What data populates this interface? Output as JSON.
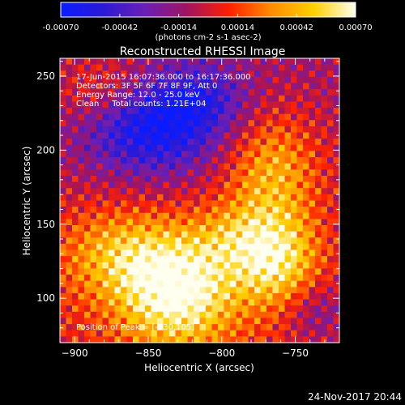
{
  "chart_data": {
    "type": "heatmap",
    "title": "Reconstructed RHESSI Image",
    "xlabel": "Heliocentric X (arcsec)",
    "ylabel": "Heliocentric Y (arcsec)",
    "xlim": [
      -910,
      -720
    ],
    "ylim": [
      70,
      262
    ],
    "x_ticks": [
      -900,
      -850,
      -800,
      -750
    ],
    "y_ticks": [
      100,
      150,
      200,
      250
    ],
    "colorbar": {
      "range": [
        -0.0007,
        0.0007
      ],
      "ticks": [
        "-0.00070",
        "-0.00042",
        "-0.00014",
        "0.00014",
        "0.00042",
        "0.00070"
      ],
      "unit_label": "(photons cm-2 s-1 asec-2)",
      "colors": [
        "#0a1cff",
        "#2a1ad6",
        "#6a1fb6",
        "#a01460",
        "#ff2000",
        "#ff8c00",
        "#ffd000",
        "#fffff0"
      ]
    },
    "annotations": [
      "17-Jun-2015 16:07:36.000 to 16:17:36.000",
      "Detectors: 3F 5F 6F 7F 8F 9F, Att 0",
      "Energy Range: 12.0 - 25.0 keV",
      "Clean     Total counts: 1.21E+04"
    ],
    "peak_label": "Position of Peak = [-830,105]",
    "peak": [
      -830,
      105
    ],
    "footer_date": "24-Nov-2017 20:44",
    "features": [
      {
        "x": -830,
        "y": 105,
        "amp": 0.00075,
        "sx": 28,
        "sy": 26
      },
      {
        "x": -870,
        "y": 130,
        "amp": 0.0004,
        "sx": 30,
        "sy": 22
      },
      {
        "x": -762,
        "y": 125,
        "amp": 0.00055,
        "sx": 20,
        "sy": 22
      },
      {
        "x": -790,
        "y": 140,
        "amp": 0.0003,
        "sx": 22,
        "sy": 18
      },
      {
        "x": -765,
        "y": 185,
        "amp": 0.00045,
        "sx": 22,
        "sy": 28
      },
      {
        "x": -880,
        "y": 240,
        "amp": 0.00025,
        "sx": 24,
        "sy": 18
      },
      {
        "x": -848,
        "y": 215,
        "amp": -0.0006,
        "sx": 32,
        "sy": 22
      },
      {
        "x": -815,
        "y": 235,
        "amp": -0.0003,
        "sx": 22,
        "sy": 16
      },
      {
        "x": -735,
        "y": 90,
        "amp": -0.00025,
        "sx": 16,
        "sy": 16
      }
    ]
  }
}
